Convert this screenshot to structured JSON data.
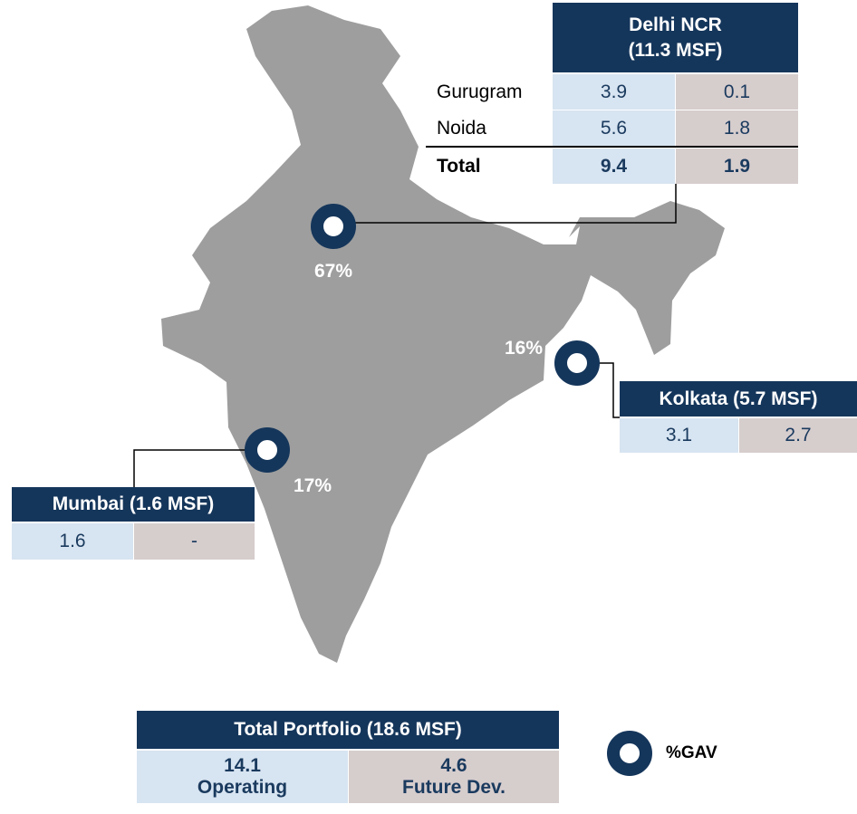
{
  "delhi_ncr": {
    "title": "Delhi NCR (11.3 MSF)",
    "rows": [
      [
        "Gurugram",
        "3.9",
        "0.1"
      ],
      [
        "Noida",
        "5.6",
        "1.8"
      ],
      [
        "Total",
        "9.4",
        "1.9"
      ]
    ],
    "gav": "67%"
  },
  "kolkata": {
    "title": "Kolkata (5.7 MSF)",
    "values": [
      "3.1",
      "2.7"
    ],
    "gav": "16%"
  },
  "mumbai": {
    "title": "Mumbai (1.6 MSF)",
    "values": [
      "1.6",
      "-"
    ],
    "gav": "17%"
  },
  "total_portfolio": {
    "title": "Total Portfolio (18.6 MSF)",
    "columns": [
      {
        "value": "14.1",
        "label": "Operating"
      },
      {
        "value": "4.6",
        "label": "Future Dev."
      }
    ]
  },
  "legend": {
    "label": "%GAV"
  }
}
